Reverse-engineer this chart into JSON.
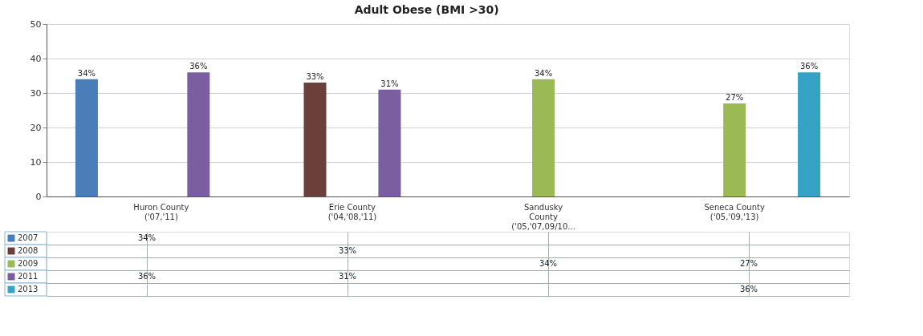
{
  "chart_data": {
    "type": "bar",
    "title": "Adult Obese (BMI >30)",
    "categories": [
      "Huron County\n('07,'11)",
      "Erie County\n('04,'08,'11)",
      "Sandusky\nCounty\n('05,'07,09/10...",
      "Seneca County\n('05,'09,'13)"
    ],
    "series": [
      {
        "name": "2007",
        "color": "#4a7ebb",
        "values": [
          34,
          null,
          null,
          null
        ],
        "value_labels": [
          "34%",
          null,
          null,
          null
        ]
      },
      {
        "name": "2008",
        "color": "#6b3f3a",
        "values": [
          null,
          33,
          null,
          null
        ],
        "value_labels": [
          null,
          "33%",
          null,
          null
        ]
      },
      {
        "name": "2009",
        "color": "#9bb955",
        "values": [
          null,
          null,
          34,
          27
        ],
        "value_labels": [
          null,
          null,
          "34%",
          "27%"
        ]
      },
      {
        "name": "2011",
        "color": "#7a5ea0",
        "values": [
          36,
          31,
          null,
          null
        ],
        "value_labels": [
          "36%",
          "31%",
          null,
          null
        ]
      },
      {
        "name": "2013",
        "color": "#36a2c4",
        "values": [
          null,
          null,
          null,
          36
        ],
        "value_labels": [
          null,
          null,
          null,
          "36%"
        ]
      }
    ],
    "ylim": [
      0,
      50
    ],
    "yticks": [
      0,
      10,
      20,
      30,
      40,
      50
    ],
    "grid": "y",
    "legend": "bottom"
  }
}
